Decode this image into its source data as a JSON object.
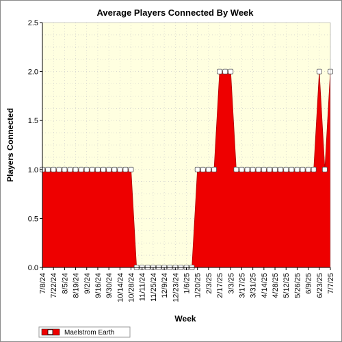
{
  "chart_data": {
    "type": "area",
    "title": "Average Players Connected By Week",
    "xlabel": "Week",
    "ylabel": "Players Connected",
    "ylim": [
      0,
      2.5
    ],
    "yticks": [
      "0.0",
      "0.5",
      "1.0",
      "1.5",
      "2.0",
      "2.5"
    ],
    "x_tick_labels": [
      "7/8/24",
      "7/22/24",
      "8/5/24",
      "8/19/24",
      "9/2/24",
      "9/16/24",
      "9/30/24",
      "10/14/24",
      "10/28/24",
      "11/11/24",
      "11/25/24",
      "12/9/24",
      "12/23/24",
      "1/6/25",
      "1/20/25",
      "2/3/25",
      "2/17/25",
      "3/3/25",
      "3/17/25",
      "3/31/25",
      "4/14/25",
      "4/28/25",
      "5/12/25",
      "5/26/25",
      "6/9/25",
      "6/23/25",
      "7/7/25"
    ],
    "grid": true,
    "legend_position": "bottom-left",
    "fill_color": "#ee0000",
    "background_color": "#ffffe0",
    "series": [
      {
        "name": "Maelstrom Earth",
        "x": [
          "7/8/24",
          "7/15/24",
          "7/22/24",
          "7/29/24",
          "8/5/24",
          "8/12/24",
          "8/19/24",
          "8/26/24",
          "9/2/24",
          "9/9/24",
          "9/16/24",
          "9/23/24",
          "9/30/24",
          "10/7/24",
          "10/14/24",
          "10/21/24",
          "10/28/24",
          "11/4/24",
          "11/11/24",
          "11/18/24",
          "11/25/24",
          "12/2/24",
          "12/9/24",
          "12/16/24",
          "12/23/24",
          "12/30/24",
          "1/6/25",
          "1/13/25",
          "1/20/25",
          "1/27/25",
          "2/3/25",
          "2/10/25",
          "2/17/25",
          "2/24/25",
          "3/3/25",
          "3/10/25",
          "3/17/25",
          "3/24/25",
          "3/31/25",
          "4/7/25",
          "4/14/25",
          "4/21/25",
          "4/28/25",
          "5/5/25",
          "5/12/25",
          "5/19/25",
          "5/26/25",
          "6/2/25",
          "6/9/25",
          "6/16/25",
          "6/23/25",
          "6/30/25",
          "7/7/25"
        ],
        "values": [
          1,
          1,
          1,
          1,
          1,
          1,
          1,
          1,
          1,
          1,
          1,
          1,
          1,
          1,
          1,
          1,
          1,
          0,
          0,
          0,
          0,
          0,
          0,
          0,
          0,
          0,
          0,
          0,
          1,
          1,
          1,
          1,
          2,
          2,
          2,
          1,
          1,
          1,
          1,
          1,
          1,
          1,
          1,
          1,
          1,
          1,
          1,
          1,
          1,
          1,
          2,
          1,
          2
        ]
      }
    ]
  }
}
